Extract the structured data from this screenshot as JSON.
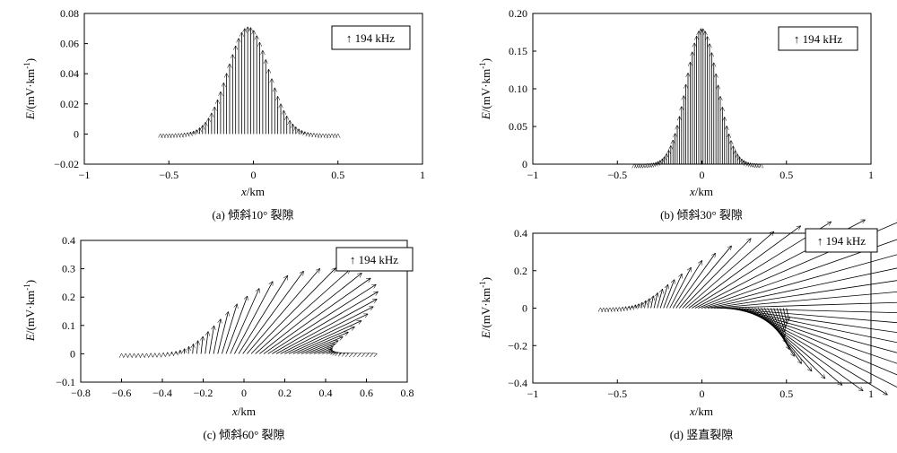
{
  "chart_data": [
    {
      "id": "a",
      "type": "vector-field",
      "caption": "(a) 倾斜10° 裂隙",
      "legend": "↑ 194 kHz",
      "legend_position": "top-right",
      "xlabel_var": "x",
      "xlabel_unit": "/km",
      "ylabel_var": "E",
      "ylabel_unit": "/(mV·km",
      "ylabel_sup": "-1",
      "ylabel_close": ")",
      "xlim": [
        -1,
        1
      ],
      "ylim": [
        -0.02,
        0.08
      ],
      "xticks": [
        -1,
        -0.5,
        0,
        0.5,
        1
      ],
      "xtick_labels": [
        "−1",
        "−0.5",
        "0",
        "0.5",
        "1"
      ],
      "yticks": [
        -0.02,
        0,
        0.02,
        0.04,
        0.06,
        0.08
      ],
      "ytick_labels": [
        "−0.02",
        "0",
        "0.02",
        "0.04",
        "0.06",
        "0.08"
      ],
      "field": {
        "x_start": -0.55,
        "x_end": 0.5,
        "count": 60,
        "center": -0.03,
        "width": 0.17,
        "amplitude": 0.071,
        "tilt_deg": 0,
        "skew": 0
      }
    },
    {
      "id": "b",
      "type": "vector-field",
      "caption": "(b) 倾斜30° 裂隙",
      "legend": "↑ 194 kHz",
      "legend_position": "top-right",
      "xlabel_var": "x",
      "xlabel_unit": "/km",
      "ylabel_var": "E",
      "ylabel_unit": "/(mV·km",
      "ylabel_sup": "-1",
      "ylabel_close": ")",
      "xlim": [
        -1,
        1
      ],
      "ylim": [
        0,
        0.2
      ],
      "xticks": [
        -1,
        -0.5,
        0,
        0.5,
        1
      ],
      "xtick_labels": [
        "−1",
        "−0.5",
        "0",
        "0.5",
        "1"
      ],
      "yticks": [
        0,
        0.05,
        0.1,
        0.15,
        0.2
      ],
      "ytick_labels": [
        "0",
        "0.05",
        "0.10",
        "0.15",
        "0.20"
      ],
      "field": {
        "x_start": -0.4,
        "x_end": 0.35,
        "count": 60,
        "center": 0.0,
        "width": 0.13,
        "amplitude": 0.18,
        "tilt_deg": 0,
        "skew": 0
      }
    },
    {
      "id": "c",
      "type": "vector-field",
      "caption": "(c) 倾斜60° 裂隙",
      "legend": "↑ 194 kHz",
      "legend_position": "top-right",
      "xlabel_var": "x",
      "xlabel_unit": "/km",
      "ylabel_var": "E",
      "ylabel_unit": "/(mV·km",
      "ylabel_sup": "-1",
      "ylabel_close": ")",
      "xlim": [
        -0.8,
        0.8
      ],
      "ylim": [
        -0.1,
        0.4
      ],
      "xticks": [
        -0.8,
        -0.6,
        -0.4,
        -0.2,
        0,
        0.2,
        0.4,
        0.6,
        0.8
      ],
      "xtick_labels": [
        "−0.8",
        "−0.6",
        "−0.4",
        "−0.2",
        "0",
        "0.2",
        "0.4",
        "0.6",
        "0.8"
      ],
      "yticks": [
        -0.1,
        0,
        0.1,
        0.2,
        0.3,
        0.4
      ],
      "ytick_labels": [
        "−0.1",
        "0",
        "0.1",
        "0.2",
        "0.3",
        "0.4"
      ],
      "field": {
        "x_start": -0.6,
        "x_end": 0.65,
        "count": 62,
        "center": 0.05,
        "width": 0.2,
        "amplitude": 0.33,
        "tilt_deg": 1,
        "skew": 0.28
      }
    },
    {
      "id": "d",
      "type": "vector-field",
      "caption": "(d) 竖直裂隙",
      "legend": "↑ 194 kHz",
      "legend_position": "top-right",
      "xlabel_var": "x",
      "xlabel_unit": "/km",
      "ylabel_var": "E",
      "ylabel_unit": "/(mV·km",
      "ylabel_sup": "-1",
      "ylabel_close": ")",
      "xlim": [
        -1,
        1
      ],
      "ylim": [
        -0.4,
        0.4
      ],
      "xticks": [
        -1,
        -0.5,
        0,
        0.5,
        1
      ],
      "xtick_labels": [
        "−1",
        "−0.5",
        "0",
        "0.5",
        "1"
      ],
      "yticks": [
        -0.4,
        -0.2,
        0,
        0.2,
        0.4
      ],
      "ytick_labels": [
        "−0.4",
        "−0.2",
        "0",
        "0.2",
        "0.4"
      ],
      "field": {
        "x_start": -0.6,
        "x_end": 0.5,
        "count": 60,
        "center": 0.1,
        "width": 0.25,
        "amplitude": 0.85,
        "tilt_deg": 2,
        "skew": 1
      }
    }
  ]
}
